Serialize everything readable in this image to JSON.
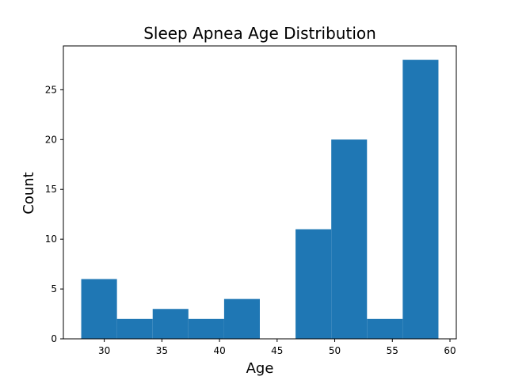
{
  "chart_data": {
    "type": "bar",
    "title": "Sleep Apnea Age Distribution",
    "xlabel": "Age",
    "ylabel": "Count",
    "xlim": [
      26.45,
      60.55
    ],
    "ylim": [
      0,
      29.4
    ],
    "xticks": [
      30,
      35,
      40,
      45,
      50,
      55,
      60
    ],
    "yticks": [
      0,
      5,
      10,
      15,
      20,
      25
    ],
    "bins": [
      {
        "x0": 28.0,
        "x1": 31.1,
        "value": 6
      },
      {
        "x0": 31.1,
        "x1": 34.2,
        "value": 2
      },
      {
        "x0": 34.2,
        "x1": 37.3,
        "value": 3
      },
      {
        "x0": 37.3,
        "x1": 40.4,
        "value": 2
      },
      {
        "x0": 40.4,
        "x1": 43.5,
        "value": 4
      },
      {
        "x0": 43.5,
        "x1": 46.6,
        "value": 0
      },
      {
        "x0": 46.6,
        "x1": 49.7,
        "value": 11
      },
      {
        "x0": 49.7,
        "x1": 52.8,
        "value": 20
      },
      {
        "x0": 52.8,
        "x1": 55.9,
        "value": 2
      },
      {
        "x0": 55.9,
        "x1": 59.0,
        "value": 28
      }
    ],
    "bar_color": "#1f77b4",
    "grid": false,
    "legend": false
  }
}
